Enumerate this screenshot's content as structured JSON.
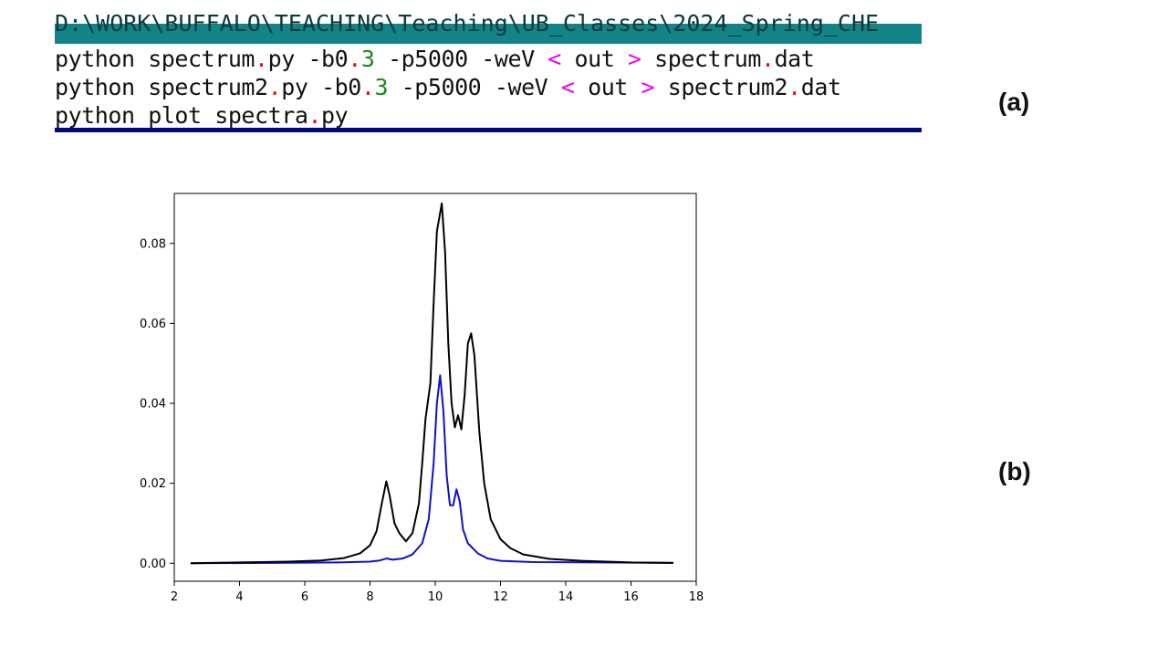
{
  "terminal": {
    "path_line": "D:\\WORK\\BUFFALO\\TEACHING\\Teaching\\UB_Classes\\2024_Spring_CHE",
    "lines": [
      [
        {
          "t": "python spectrum",
          "c": "plain"
        },
        {
          "t": ".",
          "c": "dot"
        },
        {
          "t": "py -b0",
          "c": "plain"
        },
        {
          "t": ".",
          "c": "dot"
        },
        {
          "t": "3",
          "c": "num"
        },
        {
          "t": " -p5000 -weV ",
          "c": "plain"
        },
        {
          "t": "<",
          "c": "op"
        },
        {
          "t": " out ",
          "c": "plain"
        },
        {
          "t": ">",
          "c": "op"
        },
        {
          "t": " spectrum",
          "c": "plain"
        },
        {
          "t": ".",
          "c": "dot"
        },
        {
          "t": "dat",
          "c": "plain"
        }
      ],
      [
        {
          "t": "python spectrum2",
          "c": "plain"
        },
        {
          "t": ".",
          "c": "dot"
        },
        {
          "t": "py -b0",
          "c": "plain"
        },
        {
          "t": ".",
          "c": "dot"
        },
        {
          "t": "3",
          "c": "num"
        },
        {
          "t": " -p5000 -weV ",
          "c": "plain"
        },
        {
          "t": "<",
          "c": "op"
        },
        {
          "t": " out ",
          "c": "plain"
        },
        {
          "t": ">",
          "c": "op"
        },
        {
          "t": " spectrum2",
          "c": "plain"
        },
        {
          "t": ".",
          "c": "dot"
        },
        {
          "t": "dat",
          "c": "plain"
        }
      ],
      [
        {
          "t": "python plot_spectra",
          "c": "plain"
        },
        {
          "t": ".",
          "c": "dot"
        },
        {
          "t": "py",
          "c": "plain"
        }
      ]
    ]
  },
  "labels": {
    "a": "(a)",
    "b": "(b)"
  },
  "colors": {
    "titlebar": "#128488",
    "bottom_bar": "#000a80",
    "dot": "#e01010",
    "number": "#1a8a1a",
    "operator": "#ee00ee",
    "series_black": "#000000",
    "series_blue": "#1010c8"
  },
  "chart_data": {
    "type": "line",
    "title": "",
    "xlabel": "",
    "ylabel": "",
    "xlim": [
      2,
      18
    ],
    "ylim": [
      -0.0045,
      0.0925
    ],
    "xticks": [
      2,
      4,
      6,
      8,
      10,
      12,
      14,
      16,
      18
    ],
    "xtick_labels": [
      "2",
      "4",
      "6",
      "8",
      "10",
      "12",
      "14",
      "16",
      "18"
    ],
    "yticks": [
      0.0,
      0.02,
      0.04,
      0.06,
      0.08
    ],
    "ytick_labels": [
      "0.00",
      "0.02",
      "0.04",
      "0.06",
      "0.08"
    ],
    "grid": false,
    "legend": false,
    "series": [
      {
        "color": "#000000",
        "x": [
          2.5,
          4.0,
          5.5,
          6.5,
          7.2,
          7.7,
          8.0,
          8.2,
          8.35,
          8.5,
          8.6,
          8.75,
          8.9,
          9.1,
          9.3,
          9.5,
          9.6,
          9.7,
          9.85,
          9.95,
          10.05,
          10.2,
          10.3,
          10.4,
          10.5,
          10.6,
          10.7,
          10.8,
          10.9,
          11.0,
          11.1,
          11.2,
          11.35,
          11.5,
          11.7,
          12.0,
          12.3,
          12.7,
          13.5,
          14.5,
          16.0,
          17.3
        ],
        "y": [
          0.0,
          0.0002,
          0.0004,
          0.0007,
          0.0013,
          0.0025,
          0.0045,
          0.008,
          0.0145,
          0.0205,
          0.017,
          0.01,
          0.0075,
          0.0055,
          0.0075,
          0.015,
          0.025,
          0.036,
          0.045,
          0.065,
          0.083,
          0.09,
          0.078,
          0.055,
          0.04,
          0.034,
          0.037,
          0.0335,
          0.042,
          0.055,
          0.0575,
          0.052,
          0.033,
          0.02,
          0.011,
          0.006,
          0.0038,
          0.0022,
          0.0011,
          0.0006,
          0.0002,
          0.0001
        ]
      },
      {
        "color": "#1010c8",
        "x": [
          2.5,
          5.0,
          7.0,
          8.0,
          8.3,
          8.5,
          8.7,
          9.0,
          9.3,
          9.6,
          9.8,
          9.95,
          10.05,
          10.15,
          10.25,
          10.35,
          10.45,
          10.55,
          10.65,
          10.75,
          10.85,
          11.0,
          11.3,
          11.6,
          12.0,
          13.0,
          17.3
        ],
        "y": [
          0.0,
          0.0001,
          0.0002,
          0.0004,
          0.0007,
          0.0012,
          0.0009,
          0.0012,
          0.0022,
          0.005,
          0.011,
          0.025,
          0.04,
          0.047,
          0.038,
          0.022,
          0.0145,
          0.0145,
          0.0185,
          0.0155,
          0.0085,
          0.005,
          0.0025,
          0.0012,
          0.0006,
          0.0003,
          0.0001
        ]
      }
    ]
  }
}
